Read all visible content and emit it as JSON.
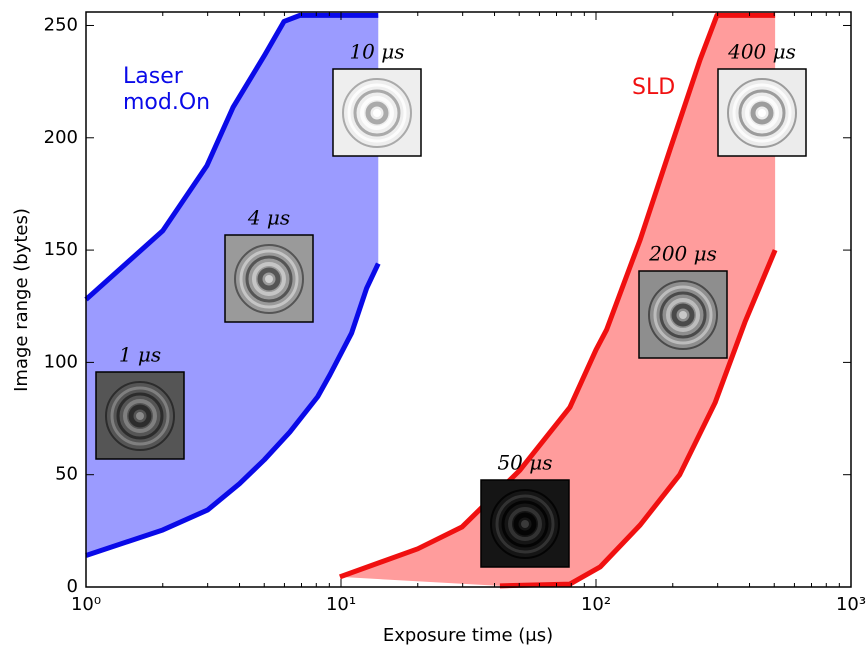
{
  "chart_data": {
    "type": "band",
    "xlabel": "Exposure time (μs)",
    "ylabel": "Image range (bytes)",
    "xscale": "log",
    "xlim": [
      1,
      1000
    ],
    "ylim": [
      0,
      256
    ],
    "xticks": [
      {
        "value": 1,
        "label": "10⁰"
      },
      {
        "value": 10,
        "label": "10¹"
      },
      {
        "value": 100,
        "label": "10²"
      },
      {
        "value": 1000,
        "label": "10³"
      }
    ],
    "xticks_minor": [
      2,
      3,
      4,
      5,
      6,
      7,
      8,
      9,
      20,
      30,
      40,
      50,
      60,
      70,
      80,
      90,
      200,
      300,
      400,
      500,
      600,
      700,
      800,
      900
    ],
    "yticks": [
      0,
      50,
      100,
      150,
      200,
      250
    ],
    "series": [
      {
        "name": "Laser mod.On",
        "color": "#0a0ae8",
        "fill": "#9b9bff",
        "upper": {
          "x": [
            1,
            2,
            2.98,
            3.77,
            5.03,
            5.98,
            6.9,
            14
          ],
          "values": [
            128,
            158.6,
            187.6,
            213.5,
            237,
            251.8,
            254.5,
            254.5
          ]
        },
        "lower": {
          "x": [
            1,
            2,
            3,
            4,
            5,
            6.3,
            8.1,
            9.05,
            11,
            12.6,
            14
          ],
          "values": [
            14,
            25.4,
            34.3,
            46,
            56.6,
            69,
            84.7,
            94.5,
            113,
            133,
            144
          ]
        }
      },
      {
        "name": "SLD",
        "color": "#f01010",
        "fill": "#ff9c9c",
        "upper": {
          "x": [
            9.9,
            20,
            29.8,
            50.3,
            79,
            100,
            110,
            149,
            195,
            256,
            298,
            504
          ],
          "values": [
            4.5,
            17,
            26.7,
            52,
            80,
            105.6,
            114.5,
            154.6,
            194.7,
            234.8,
            254.5,
            254.5
          ]
        },
        "lower": {
          "x": [
            42,
            79,
            104,
            149,
            213,
            293,
            384,
            504
          ],
          "values": [
            0.5,
            1.3,
            9,
            27.6,
            50,
            82,
            118,
            150
          ]
        }
      }
    ],
    "insets": [
      "1 μs",
      "4 μs",
      "10 μs",
      "50 μs",
      "200 μs",
      "400 μs"
    ]
  }
}
